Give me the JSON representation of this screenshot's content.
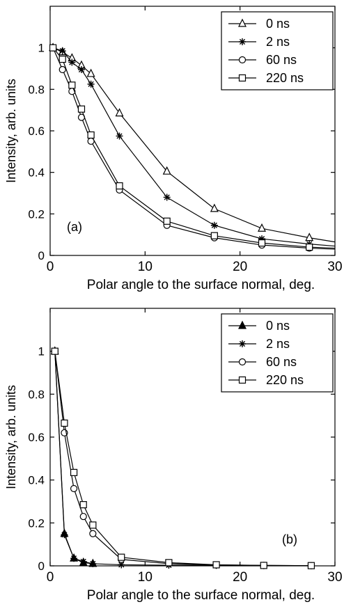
{
  "chart_data": [
    {
      "type": "line",
      "panel_label": "(a)",
      "xlabel": "Polar angle to the surface normal, deg.",
      "ylabel": "Intensity, arb. units",
      "xlim": [
        0,
        30
      ],
      "ylim": [
        0,
        1.2
      ],
      "x_ticks": [
        0,
        10,
        20,
        30
      ],
      "y_ticks": [
        0,
        0.2,
        0.4,
        0.6,
        0.8,
        1
      ],
      "legend_position": "top-right",
      "series": [
        {
          "name": "0 ns",
          "marker": "triangle",
          "x": [
            0.3,
            1.3,
            2.3,
            3.3,
            4.3,
            7.3,
            12.3,
            17.3,
            22.3,
            27.3,
            30
          ],
          "y": [
            1.0,
            0.98,
            0.95,
            0.915,
            0.875,
            0.685,
            0.405,
            0.225,
            0.13,
            0.085,
            0.065
          ]
        },
        {
          "name": "2 ns",
          "marker": "star",
          "x": [
            0.3,
            1.3,
            2.3,
            3.3,
            4.3,
            7.3,
            12.3,
            17.3,
            22.3,
            27.3,
            30
          ],
          "y": [
            1.0,
            0.985,
            0.93,
            0.895,
            0.825,
            0.575,
            0.28,
            0.145,
            0.08,
            0.055,
            0.045
          ]
        },
        {
          "name": "60 ns",
          "marker": "circle",
          "x": [
            0.3,
            1.3,
            2.3,
            3.3,
            4.3,
            7.3,
            12.3,
            17.3,
            22.3,
            27.3,
            30
          ],
          "y": [
            1.0,
            0.895,
            0.79,
            0.665,
            0.55,
            0.315,
            0.145,
            0.085,
            0.05,
            0.035,
            0.03
          ]
        },
        {
          "name": "220 ns",
          "marker": "square",
          "x": [
            0.3,
            1.3,
            2.3,
            3.3,
            4.3,
            7.3,
            12.3,
            17.3,
            22.3,
            27.3,
            30
          ],
          "y": [
            1.0,
            0.945,
            0.82,
            0.705,
            0.58,
            0.335,
            0.165,
            0.095,
            0.06,
            0.04,
            0.035
          ]
        }
      ]
    },
    {
      "type": "line",
      "panel_label": "(b)",
      "xlabel": "Polar angle to the surface normal, deg.",
      "ylabel": "Intensity, arb. units",
      "xlim": [
        0,
        30
      ],
      "ylim": [
        0,
        1.2
      ],
      "x_ticks": [
        0,
        10,
        20,
        30
      ],
      "y_ticks": [
        0,
        0.2,
        0.4,
        0.6,
        0.8,
        1
      ],
      "legend_position": "top-right",
      "series": [
        {
          "name": "0 ns",
          "marker": "triangle-filled",
          "x": [
            0.5,
            1.5,
            2.5,
            3.5,
            4.5
          ],
          "y": [
            1.0,
            0.15,
            0.035,
            0.015,
            0.01
          ]
        },
        {
          "name": "2 ns",
          "marker": "star",
          "x": [
            0.5,
            1.5,
            2.5,
            3.5,
            4.5,
            7.5,
            12.5,
            17.5,
            22.5,
            27.5
          ],
          "y": [
            1.0,
            0.145,
            0.035,
            0.02,
            0.01,
            0.005,
            0.003,
            0.002,
            0.001,
            0.001
          ]
        },
        {
          "name": "60 ns",
          "marker": "circle",
          "x": [
            0.5,
            1.5,
            2.5,
            3.5,
            4.5,
            7.5,
            12.5,
            17.5,
            22.5,
            27.5
          ],
          "y": [
            1.0,
            0.62,
            0.36,
            0.23,
            0.15,
            0.03,
            0.01,
            0.004,
            0.002,
            0.001
          ]
        },
        {
          "name": "220 ns",
          "marker": "square",
          "x": [
            0.5,
            1.5,
            2.5,
            3.5,
            4.5,
            7.5,
            12.5,
            17.5,
            22.5,
            27.5
          ],
          "y": [
            1.0,
            0.665,
            0.435,
            0.285,
            0.19,
            0.04,
            0.015,
            0.005,
            0.002,
            0.001
          ]
        }
      ]
    }
  ]
}
